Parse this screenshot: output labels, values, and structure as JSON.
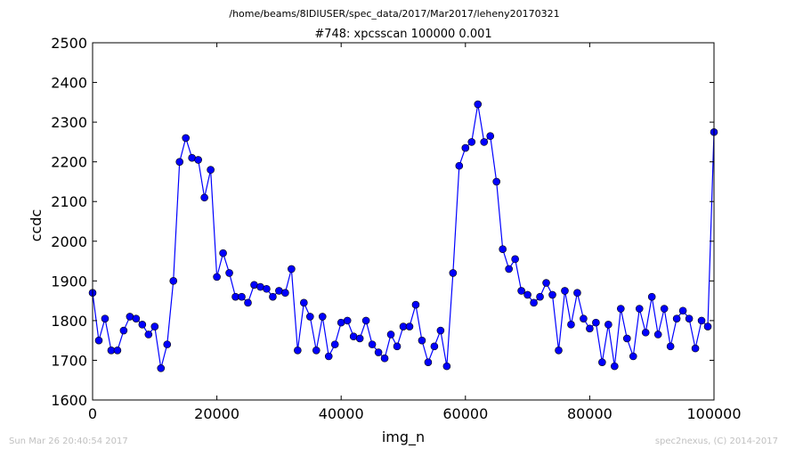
{
  "header": {
    "path": "/home/beams/8IDIUSER/spec_data/2017/Mar2017/leheny20170321"
  },
  "footer": {
    "timestamp": "Sun Mar 26 20:40:54 2017",
    "credit": "spec2nexus, (C) 2014-2017"
  },
  "colors": {
    "series": "#0000ff",
    "footer_text": "#c0c0c0"
  },
  "chart_data": {
    "type": "line",
    "title": "#748: xpcsscan 100000 0.001",
    "xlabel": "img_n",
    "ylabel": "ccdc",
    "xlim": [
      0,
      100000
    ],
    "ylim": [
      1600,
      2500
    ],
    "xticks": [
      0,
      20000,
      40000,
      60000,
      80000,
      100000
    ],
    "yticks": [
      1600,
      1700,
      1800,
      1900,
      2000,
      2100,
      2200,
      2300,
      2400,
      2500
    ],
    "grid": false,
    "series": [
      {
        "marker": "circle",
        "x": [
          0,
          1000,
          2000,
          3000,
          4000,
          5000,
          6000,
          7000,
          8000,
          9000,
          10000,
          11000,
          12000,
          13000,
          14000,
          15000,
          16000,
          17000,
          18000,
          19000,
          20000,
          21000,
          22000,
          23000,
          24000,
          25000,
          26000,
          27000,
          28000,
          29000,
          30000,
          31000,
          32000,
          33000,
          34000,
          35000,
          36000,
          37000,
          38000,
          39000,
          40000,
          41000,
          42000,
          43000,
          44000,
          45000,
          46000,
          47000,
          48000,
          49000,
          50000,
          51000,
          52000,
          53000,
          54000,
          55000,
          56000,
          57000,
          58000,
          59000,
          60000,
          61000,
          62000,
          63000,
          64000,
          65000,
          66000,
          67000,
          68000,
          69000,
          70000,
          71000,
          72000,
          73000,
          74000,
          75000,
          76000,
          77000,
          78000,
          79000,
          80000,
          81000,
          82000,
          83000,
          84000,
          85000,
          86000,
          87000,
          88000,
          89000,
          90000,
          91000,
          92000,
          93000,
          94000,
          95000,
          96000,
          97000,
          98000,
          99000,
          100000
        ],
        "y": [
          1870,
          1750,
          1805,
          1725,
          1725,
          1775,
          1810,
          1805,
          1790,
          1765,
          1785,
          1680,
          1740,
          1900,
          2200,
          2260,
          2210,
          2205,
          2110,
          2180,
          1910,
          1970,
          1920,
          1860,
          1860,
          1845,
          1890,
          1885,
          1880,
          1860,
          1875,
          1870,
          1930,
          1725,
          1845,
          1810,
          1725,
          1810,
          1710,
          1740,
          1795,
          1800,
          1760,
          1755,
          1800,
          1740,
          1720,
          1705,
          1765,
          1735,
          1785,
          1785,
          1840,
          1750,
          1695,
          1735,
          1775,
          1685,
          1920,
          2190,
          2235,
          2250,
          2345,
          2250,
          2265,
          2150,
          1980,
          1930,
          1955,
          1875,
          1865,
          1845,
          1860,
          1895,
          1865,
          1725,
          1875,
          1790,
          1870,
          1805,
          1780,
          1795,
          1695,
          1790,
          1685,
          1830,
          1755,
          1710,
          1830,
          1770,
          1860,
          1765,
          1830,
          1735,
          1805,
          1825,
          1805,
          1730,
          1800,
          1785,
          2275
        ]
      }
    ]
  }
}
